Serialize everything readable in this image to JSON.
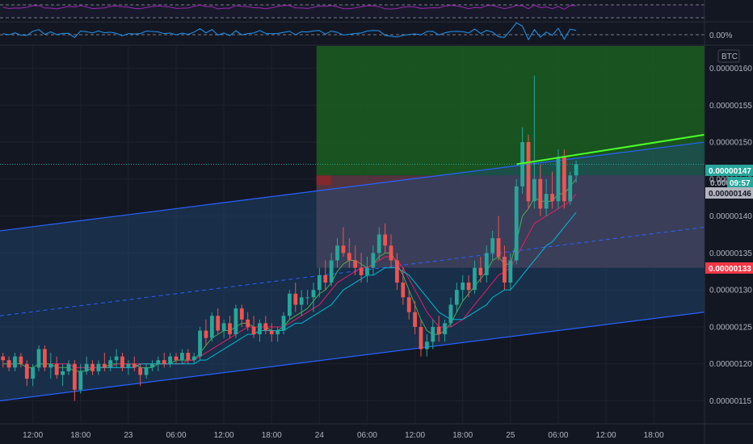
{
  "chart_data": {
    "type": "candlestick",
    "symbol_badge": "BTC",
    "oscillator_pct_label": "0.00%",
    "yaxis_ticks": [
      "0.00000160",
      "0.00000155",
      "0.00000150",
      "0.00000145",
      "0.00000140",
      "0.00000135",
      "0.00000130",
      "0.00000125",
      "0.00000120",
      "0.00000115"
    ],
    "ytick_values": [
      1.6,
      1.55,
      1.5,
      1.45,
      1.4,
      1.35,
      1.3,
      1.25,
      1.2,
      1.15
    ],
    "ylim": [
      1.12,
      1.63
    ],
    "xaxis_ticks": [
      "12:00",
      "18:00",
      "23",
      "06:00",
      "12:00",
      "18:00",
      "24",
      "06:00",
      "12:00",
      "18:00",
      "25",
      "06:00",
      "12:00",
      "18:00"
    ],
    "xtick_index": [
      5,
      13,
      21,
      29,
      37,
      45,
      53,
      61,
      69,
      77,
      85,
      93,
      101,
      109
    ],
    "bar_count_visible": 118,
    "price_tags": {
      "current": "0.00000147",
      "countdown": "09:57",
      "entry": "0.00000146",
      "stop": "0.00000133",
      "partial_hidden": "0.000"
    },
    "position_box": {
      "entry": 1.455,
      "target": 1.64,
      "stop": 1.33,
      "start_index": 53
    },
    "channel": {
      "lower": [
        [
          0,
          1.15
        ],
        [
          118,
          1.27
        ]
      ],
      "upper": [
        [
          0,
          1.38
        ],
        [
          118,
          1.5
        ]
      ]
    },
    "trend_line": [
      [
        86,
        1.47
      ],
      [
        118,
        1.51
      ]
    ],
    "candles": [
      [
        1.21,
        1.215,
        1.195,
        1.205
      ],
      [
        1.205,
        1.21,
        1.19,
        1.195
      ],
      [
        1.195,
        1.215,
        1.19,
        1.21
      ],
      [
        1.21,
        1.215,
        1.195,
        1.2
      ],
      [
        1.2,
        1.205,
        1.17,
        1.18
      ],
      [
        1.18,
        1.2,
        1.17,
        1.195
      ],
      [
        1.195,
        1.225,
        1.19,
        1.22
      ],
      [
        1.22,
        1.225,
        1.19,
        1.195
      ],
      [
        1.195,
        1.215,
        1.18,
        1.2
      ],
      [
        1.2,
        1.21,
        1.18,
        1.185
      ],
      [
        1.185,
        1.2,
        1.17,
        1.19
      ],
      [
        1.19,
        1.205,
        1.185,
        1.2
      ],
      [
        1.2,
        1.205,
        1.15,
        1.165
      ],
      [
        1.165,
        1.2,
        1.16,
        1.19
      ],
      [
        1.19,
        1.21,
        1.185,
        1.2
      ],
      [
        1.2,
        1.205,
        1.185,
        1.19
      ],
      [
        1.19,
        1.205,
        1.185,
        1.2
      ],
      [
        1.2,
        1.215,
        1.19,
        1.195
      ],
      [
        1.195,
        1.21,
        1.19,
        1.205
      ],
      [
        1.205,
        1.22,
        1.195,
        1.21
      ],
      [
        1.21,
        1.215,
        1.19,
        1.195
      ],
      [
        1.195,
        1.205,
        1.185,
        1.2
      ],
      [
        1.2,
        1.21,
        1.19,
        1.195
      ],
      [
        1.195,
        1.2,
        1.17,
        1.185
      ],
      [
        1.185,
        1.2,
        1.18,
        1.195
      ],
      [
        1.195,
        1.205,
        1.19,
        1.2
      ],
      [
        1.2,
        1.21,
        1.19,
        1.205
      ],
      [
        1.205,
        1.215,
        1.195,
        1.2
      ],
      [
        1.2,
        1.215,
        1.195,
        1.21
      ],
      [
        1.21,
        1.215,
        1.2,
        1.205
      ],
      [
        1.205,
        1.22,
        1.2,
        1.215
      ],
      [
        1.215,
        1.22,
        1.2,
        1.205
      ],
      [
        1.205,
        1.215,
        1.2,
        1.21
      ],
      [
        1.21,
        1.25,
        1.205,
        1.245
      ],
      [
        1.245,
        1.26,
        1.225,
        1.235
      ],
      [
        1.235,
        1.27,
        1.23,
        1.265
      ],
      [
        1.265,
        1.275,
        1.24,
        1.245
      ],
      [
        1.245,
        1.26,
        1.235,
        1.255
      ],
      [
        1.255,
        1.265,
        1.235,
        1.24
      ],
      [
        1.24,
        1.28,
        1.235,
        1.275
      ],
      [
        1.275,
        1.28,
        1.25,
        1.26
      ],
      [
        1.26,
        1.27,
        1.245,
        1.25
      ],
      [
        1.25,
        1.265,
        1.235,
        1.24
      ],
      [
        1.24,
        1.26,
        1.23,
        1.255
      ],
      [
        1.255,
        1.265,
        1.24,
        1.245
      ],
      [
        1.245,
        1.255,
        1.23,
        1.24
      ],
      [
        1.24,
        1.25,
        1.23,
        1.245
      ],
      [
        1.245,
        1.27,
        1.24,
        1.265
      ],
      [
        1.265,
        1.3,
        1.26,
        1.295
      ],
      [
        1.295,
        1.31,
        1.27,
        1.28
      ],
      [
        1.28,
        1.3,
        1.265,
        1.29
      ],
      [
        1.29,
        1.3,
        1.28,
        1.29
      ],
      [
        1.29,
        1.31,
        1.27,
        1.3
      ],
      [
        1.3,
        1.33,
        1.29,
        1.32
      ],
      [
        1.32,
        1.34,
        1.3,
        1.31
      ],
      [
        1.31,
        1.35,
        1.305,
        1.34
      ],
      [
        1.34,
        1.37,
        1.33,
        1.36
      ],
      [
        1.36,
        1.385,
        1.345,
        1.35
      ],
      [
        1.35,
        1.37,
        1.33,
        1.34
      ],
      [
        1.34,
        1.36,
        1.32,
        1.33
      ],
      [
        1.33,
        1.35,
        1.31,
        1.32
      ],
      [
        1.32,
        1.345,
        1.31,
        1.33
      ],
      [
        1.33,
        1.36,
        1.32,
        1.35
      ],
      [
        1.35,
        1.385,
        1.34,
        1.375
      ],
      [
        1.375,
        1.39,
        1.35,
        1.36
      ],
      [
        1.36,
        1.375,
        1.33,
        1.34
      ],
      [
        1.34,
        1.35,
        1.3,
        1.31
      ],
      [
        1.31,
        1.33,
        1.28,
        1.29
      ],
      [
        1.29,
        1.3,
        1.26,
        1.27
      ],
      [
        1.27,
        1.285,
        1.24,
        1.25
      ],
      [
        1.25,
        1.26,
        1.21,
        1.22
      ],
      [
        1.22,
        1.24,
        1.21,
        1.23
      ],
      [
        1.23,
        1.26,
        1.22,
        1.25
      ],
      [
        1.25,
        1.265,
        1.23,
        1.24
      ],
      [
        1.24,
        1.26,
        1.23,
        1.255
      ],
      [
        1.255,
        1.29,
        1.25,
        1.28
      ],
      [
        1.28,
        1.31,
        1.27,
        1.3
      ],
      [
        1.3,
        1.32,
        1.285,
        1.31
      ],
      [
        1.31,
        1.32,
        1.29,
        1.3
      ],
      [
        1.3,
        1.34,
        1.295,
        1.33
      ],
      [
        1.33,
        1.345,
        1.31,
        1.32
      ],
      [
        1.32,
        1.36,
        1.31,
        1.35
      ],
      [
        1.35,
        1.38,
        1.34,
        1.37
      ],
      [
        1.37,
        1.4,
        1.34,
        1.345
      ],
      [
        1.345,
        1.36,
        1.3,
        1.31
      ],
      [
        1.31,
        1.35,
        1.3,
        1.34
      ],
      [
        1.34,
        1.45,
        1.335,
        1.44
      ],
      [
        1.44,
        1.52,
        1.43,
        1.5
      ],
      [
        1.5,
        1.51,
        1.41,
        1.42
      ],
      [
        1.42,
        1.59,
        1.41,
        1.45
      ],
      [
        1.45,
        1.47,
        1.4,
        1.41
      ],
      [
        1.41,
        1.45,
        1.4,
        1.43
      ],
      [
        1.43,
        1.46,
        1.41,
        1.42
      ],
      [
        1.42,
        1.49,
        1.41,
        1.48
      ],
      [
        1.48,
        1.49,
        1.41,
        1.42
      ],
      [
        1.42,
        1.46,
        1.415,
        1.455
      ],
      [
        1.455,
        1.475,
        1.445,
        1.47
      ]
    ],
    "ma_series": [
      {
        "color": "#4caf50",
        "values": [
          1.2,
          1.2,
          1.2,
          1.2,
          1.195,
          1.195,
          1.2,
          1.2,
          1.2,
          1.195,
          1.195,
          1.195,
          1.19,
          1.19,
          1.19,
          1.195,
          1.195,
          1.195,
          1.2,
          1.2,
          1.2,
          1.2,
          1.2,
          1.195,
          1.195,
          1.195,
          1.2,
          1.2,
          1.2,
          1.205,
          1.205,
          1.205,
          1.205,
          1.215,
          1.225,
          1.235,
          1.24,
          1.245,
          1.245,
          1.25,
          1.255,
          1.255,
          1.25,
          1.25,
          1.25,
          1.245,
          1.245,
          1.25,
          1.26,
          1.265,
          1.27,
          1.275,
          1.285,
          1.295,
          1.3,
          1.31,
          1.325,
          1.335,
          1.34,
          1.34,
          1.335,
          1.33,
          1.335,
          1.345,
          1.35,
          1.35,
          1.335,
          1.32,
          1.3,
          1.28,
          1.26,
          1.245,
          1.24,
          1.24,
          1.245,
          1.255,
          1.27,
          1.285,
          1.295,
          1.305,
          1.315,
          1.325,
          1.34,
          1.345,
          1.335,
          1.335,
          1.365,
          1.4,
          1.41,
          1.425,
          1.42,
          1.42,
          1.42,
          1.43,
          1.43,
          1.44,
          1.45
        ]
      },
      {
        "color": "#e91e63",
        "values": [
          null,
          null,
          null,
          null,
          null,
          null,
          null,
          null,
          1.2,
          1.2,
          1.2,
          1.2,
          1.195,
          1.195,
          1.195,
          1.195,
          1.195,
          1.195,
          1.195,
          1.2,
          1.2,
          1.2,
          1.2,
          1.2,
          1.2,
          1.2,
          1.2,
          1.2,
          1.2,
          1.2,
          1.2,
          1.205,
          1.205,
          1.21,
          1.215,
          1.22,
          1.225,
          1.23,
          1.235,
          1.24,
          1.245,
          1.25,
          1.25,
          1.25,
          1.25,
          1.25,
          1.25,
          1.25,
          1.255,
          1.26,
          1.265,
          1.27,
          1.275,
          1.28,
          1.29,
          1.3,
          1.31,
          1.315,
          1.32,
          1.325,
          1.33,
          1.33,
          1.335,
          1.34,
          1.345,
          1.345,
          1.34,
          1.33,
          1.315,
          1.3,
          1.285,
          1.27,
          1.26,
          1.25,
          1.25,
          1.25,
          1.255,
          1.26,
          1.27,
          1.28,
          1.29,
          1.3,
          1.31,
          1.32,
          1.325,
          1.33,
          1.345,
          1.36,
          1.375,
          1.39,
          1.395,
          1.4,
          1.405,
          1.41,
          1.415,
          1.42,
          1.43
        ]
      },
      {
        "color": "#00bcd4",
        "values": [
          null,
          null,
          null,
          null,
          null,
          null,
          null,
          null,
          null,
          null,
          null,
          null,
          null,
          null,
          null,
          null,
          1.195,
          1.195,
          1.195,
          1.195,
          1.195,
          1.195,
          1.195,
          1.2,
          1.2,
          1.2,
          1.2,
          1.2,
          1.2,
          1.2,
          1.2,
          1.2,
          1.2,
          1.205,
          1.205,
          1.21,
          1.215,
          1.22,
          1.225,
          1.23,
          1.235,
          1.24,
          1.24,
          1.245,
          1.245,
          1.245,
          1.245,
          1.245,
          1.25,
          1.255,
          1.255,
          1.26,
          1.265,
          1.27,
          1.275,
          1.28,
          1.29,
          1.3,
          1.305,
          1.31,
          1.315,
          1.32,
          1.32,
          1.325,
          1.33,
          1.33,
          1.33,
          1.325,
          1.32,
          1.31,
          1.3,
          1.29,
          1.28,
          1.27,
          1.265,
          1.26,
          1.26,
          1.26,
          1.265,
          1.27,
          1.275,
          1.28,
          1.29,
          1.295,
          1.3,
          1.3,
          1.31,
          1.32,
          1.33,
          1.34,
          1.35,
          1.36,
          1.365,
          1.375,
          1.385,
          1.395,
          1.405
        ]
      }
    ]
  },
  "colors": {
    "background": "#131722",
    "grid": "#1e222d",
    "up": "#26a69a",
    "down": "#ef5350",
    "channel_line": "#2962ff",
    "channel_fill": "#1e4b7a",
    "target_fill": "#1b5e20",
    "stop_fill": "#5d3a44",
    "trend": "#4cff2a",
    "rsi_line": "#9c27b0",
    "osc_line": "#2196f3"
  }
}
